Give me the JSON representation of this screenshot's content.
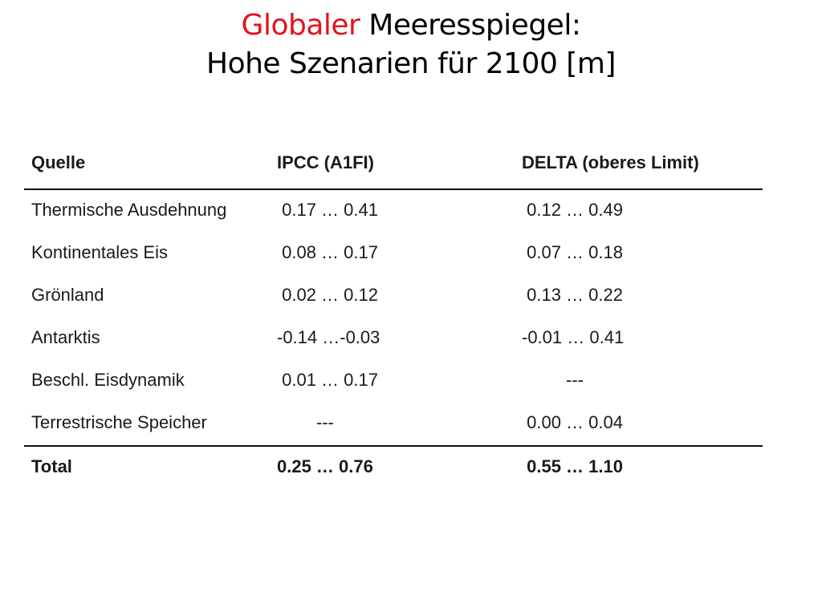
{
  "title": {
    "accent": "Globaler",
    "rest": " Meeresspiegel:",
    "line2": "Hohe Szenarien für 2100 [m]"
  },
  "table": {
    "headers": [
      "Quelle",
      "IPCC (A1FI)",
      "DELTA (oberes Limit)"
    ],
    "rows": [
      [
        "Thermische Ausdehnung",
        " 0.17 … 0.41",
        " 0.12 … 0.49"
      ],
      [
        "Kontinentales Eis",
        " 0.08 … 0.17",
        " 0.07 … 0.18"
      ],
      [
        "Grönland",
        " 0.02 … 0.12",
        " 0.13 … 0.22"
      ],
      [
        "Antarktis",
        "-0.14 …-0.03",
        "-0.01 … 0.41"
      ],
      [
        "Beschl. Eisdynamik",
        " 0.01 … 0.17",
        "         ---"
      ],
      [
        "Terrestrische Speicher",
        "        ---",
        " 0.00 … 0.04"
      ]
    ],
    "total": [
      "Total",
      "0.25 … 0.76",
      " 0.55 … 1.10"
    ]
  }
}
